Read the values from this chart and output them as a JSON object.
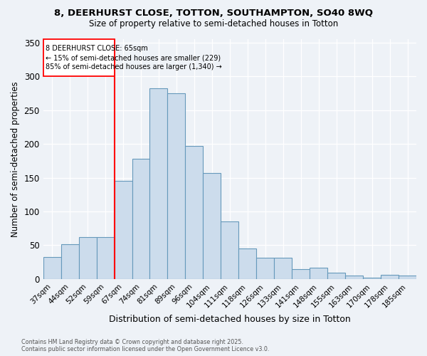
{
  "title_line1": "8, DEERHURST CLOSE, TOTTON, SOUTHAMPTON, SO40 8WQ",
  "title_line2": "Size of property relative to semi-detached houses in Totton",
  "xlabel": "Distribution of semi-detached houses by size in Totton",
  "ylabel": "Number of semi-detached properties",
  "categories": [
    "37sqm",
    "44sqm",
    "52sqm",
    "59sqm",
    "67sqm",
    "74sqm",
    "81sqm",
    "89sqm",
    "96sqm",
    "104sqm",
    "111sqm",
    "118sqm",
    "126sqm",
    "133sqm",
    "141sqm",
    "148sqm",
    "155sqm",
    "163sqm",
    "170sqm",
    "178sqm",
    "185sqm"
  ],
  "values": [
    33,
    52,
    62,
    62,
    145,
    178,
    282,
    275,
    197,
    157,
    85,
    45,
    32,
    32,
    15,
    17,
    9,
    5,
    2,
    6,
    5
  ],
  "bar_color": "#ccdcec",
  "bar_edge_color": "#6699bb",
  "highlight_line_color": "red",
  "highlight_line_idx": 4,
  "annotation_title": "8 DEERHURST CLOSE: 65sqm",
  "annotation_line1": "← 15% of semi-detached houses are smaller (229)",
  "annotation_line2": "85% of semi-detached houses are larger (1,340) →",
  "ylim": [
    0,
    355
  ],
  "yticks": [
    0,
    50,
    100,
    150,
    200,
    250,
    300,
    350
  ],
  "footer_line1": "Contains HM Land Registry data © Crown copyright and database right 2025.",
  "footer_line2": "Contains public sector information licensed under the Open Government Licence v3.0.",
  "bg_color": "#eef2f7"
}
